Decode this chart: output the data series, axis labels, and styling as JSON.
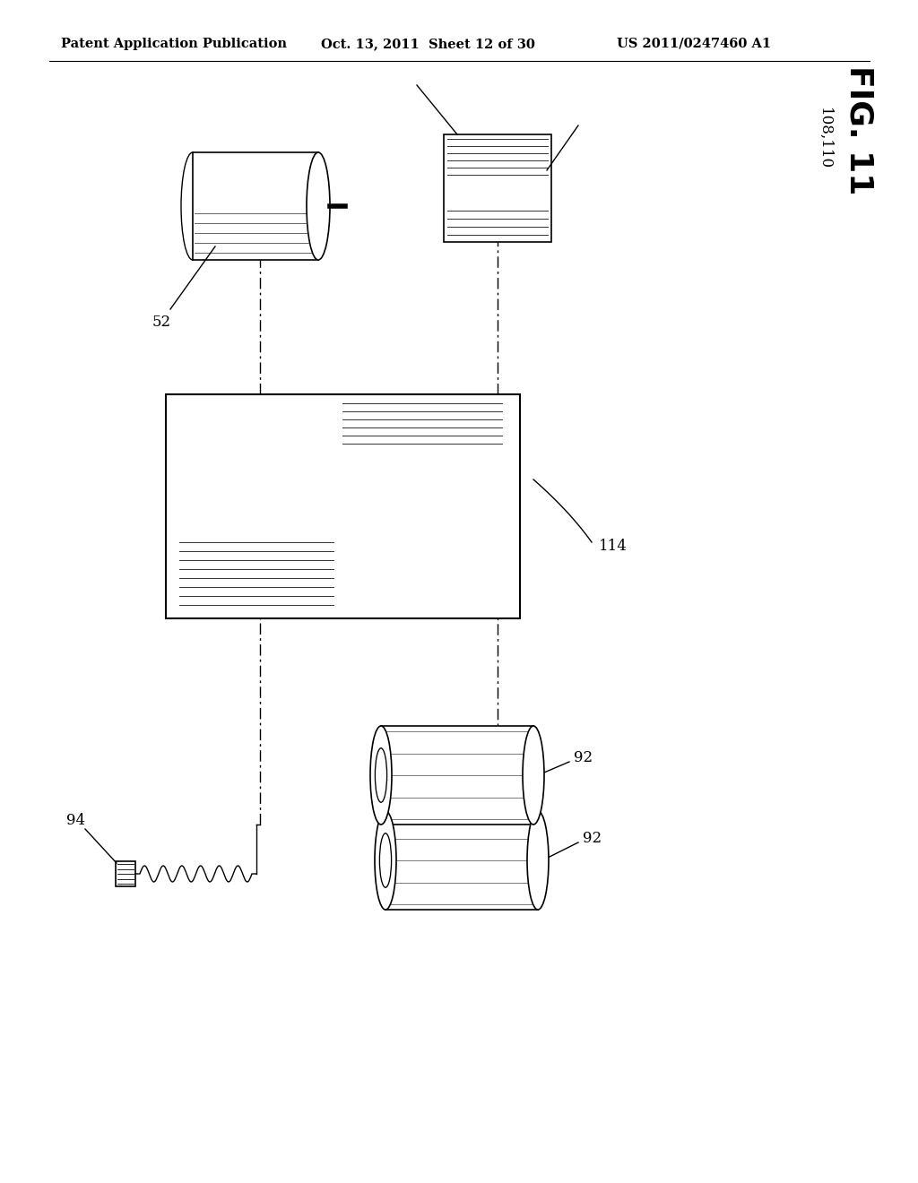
{
  "bg_color": "#ffffff",
  "header_left": "Patent Application Publication",
  "header_mid": "Oct. 13, 2011  Sheet 12 of 30",
  "header_right": "US 2011/0247460 A1",
  "fig_label": "FIG. 11",
  "label_52": "52",
  "label_92a": "92",
  "label_92b": "92",
  "label_94": "94",
  "label_108_110": "108,110",
  "label_114": "114",
  "line_color": "#000000",
  "header_fontsize": 10.5,
  "fig_label_fontsize": 26,
  "ref_fontsize": 12
}
